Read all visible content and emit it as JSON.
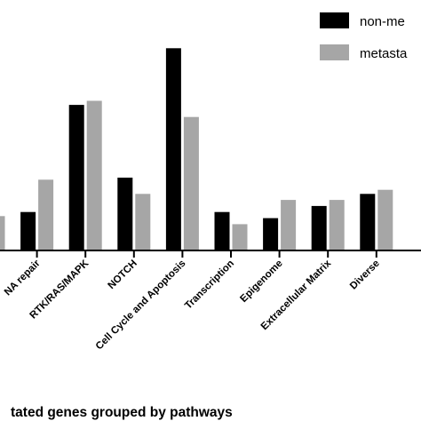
{
  "chart_data": {
    "type": "bar",
    "title": "",
    "xlabel": "tated genes grouped by pathways",
    "ylabel": "",
    "categories": [
      "",
      "NA repair",
      "RTK/RAS/MAPK",
      "NOTCH",
      "Cell Cycle and Apoptosis",
      "Transcription",
      "Epigenome",
      "Extracellular Matrix",
      "Diverse"
    ],
    "series": [
      {
        "name": "non-me",
        "color": "#000000",
        "values": [
          null,
          9.5,
          36,
          18,
          50,
          9.5,
          8,
          11,
          14
        ]
      },
      {
        "name": "metasta",
        "color": "#a6a6a6",
        "values": [
          8.5,
          17.5,
          37,
          14,
          33,
          6.5,
          12.5,
          12.5,
          15
        ]
      }
    ],
    "ylim": [
      0,
      56
    ],
    "grid": false,
    "legend_position": "top-right"
  }
}
